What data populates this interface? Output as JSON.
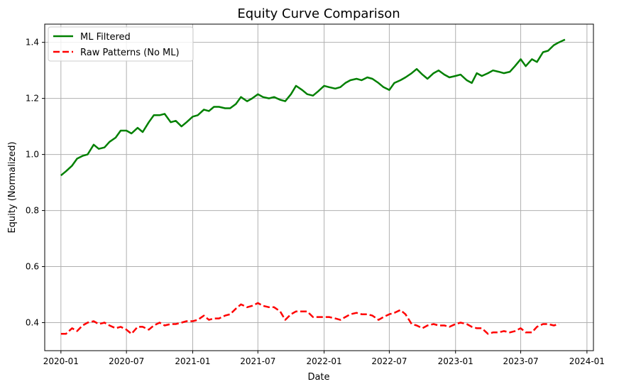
{
  "chart_data": {
    "type": "line",
    "title": "Equity Curve Comparison",
    "xlabel": "Date",
    "ylabel": "Equity (Normalized)",
    "xlim": [
      "2019-11-17",
      "2024-01-19"
    ],
    "ylim": [
      0.3,
      1.465
    ],
    "x_ticks": [
      "2020-01",
      "2020-07",
      "2021-01",
      "2021-07",
      "2022-01",
      "2022-07",
      "2023-01",
      "2023-07",
      "2024-01"
    ],
    "x_tick_dates": [
      "2020-01-01",
      "2020-07-01",
      "2021-01-01",
      "2021-07-01",
      "2022-01-01",
      "2022-07-01",
      "2023-01-01",
      "2023-07-01",
      "2024-01-01"
    ],
    "y_ticks": [
      "0.4",
      "0.6",
      "0.8",
      "1.0",
      "1.2",
      "1.4"
    ],
    "y_tick_values": [
      0.4,
      0.6,
      0.8,
      1.0,
      1.2,
      1.4
    ],
    "grid": true,
    "legend_position": "top-left",
    "series": [
      {
        "name": "ML Filtered",
        "color": "#008000",
        "style": "solid",
        "points": [
          [
            "2020-01-01",
            0.925
          ],
          [
            "2020-01-15",
            0.94
          ],
          [
            "2020-02-01",
            0.96
          ],
          [
            "2020-02-15",
            0.985
          ],
          [
            "2020-03-01",
            0.995
          ],
          [
            "2020-03-15",
            1.0
          ],
          [
            "2020-04-01",
            1.035
          ],
          [
            "2020-04-15",
            1.02
          ],
          [
            "2020-05-01",
            1.025
          ],
          [
            "2020-05-15",
            1.045
          ],
          [
            "2020-06-01",
            1.06
          ],
          [
            "2020-06-15",
            1.085
          ],
          [
            "2020-07-01",
            1.085
          ],
          [
            "2020-07-15",
            1.075
          ],
          [
            "2020-08-01",
            1.095
          ],
          [
            "2020-08-15",
            1.08
          ],
          [
            "2020-09-01",
            1.115
          ],
          [
            "2020-09-15",
            1.14
          ],
          [
            "2020-10-01",
            1.14
          ],
          [
            "2020-10-15",
            1.145
          ],
          [
            "2020-11-01",
            1.115
          ],
          [
            "2020-11-15",
            1.12
          ],
          [
            "2020-12-01",
            1.1
          ],
          [
            "2020-12-15",
            1.115
          ],
          [
            "2021-01-01",
            1.135
          ],
          [
            "2021-01-15",
            1.14
          ],
          [
            "2021-02-01",
            1.16
          ],
          [
            "2021-02-15",
            1.155
          ],
          [
            "2021-03-01",
            1.17
          ],
          [
            "2021-03-15",
            1.17
          ],
          [
            "2021-04-01",
            1.165
          ],
          [
            "2021-04-15",
            1.165
          ],
          [
            "2021-05-01",
            1.18
          ],
          [
            "2021-05-15",
            1.205
          ],
          [
            "2021-06-01",
            1.19
          ],
          [
            "2021-06-15",
            1.2
          ],
          [
            "2021-07-01",
            1.215
          ],
          [
            "2021-07-15",
            1.205
          ],
          [
            "2021-08-01",
            1.2
          ],
          [
            "2021-08-15",
            1.205
          ],
          [
            "2021-09-01",
            1.195
          ],
          [
            "2021-09-15",
            1.19
          ],
          [
            "2021-10-01",
            1.215
          ],
          [
            "2021-10-15",
            1.245
          ],
          [
            "2021-11-01",
            1.23
          ],
          [
            "2021-11-15",
            1.215
          ],
          [
            "2021-12-01",
            1.21
          ],
          [
            "2021-12-15",
            1.225
          ],
          [
            "2022-01-01",
            1.245
          ],
          [
            "2022-01-15",
            1.24
          ],
          [
            "2022-02-01",
            1.235
          ],
          [
            "2022-02-15",
            1.24
          ],
          [
            "2022-03-01",
            1.255
          ],
          [
            "2022-03-15",
            1.265
          ],
          [
            "2022-04-01",
            1.27
          ],
          [
            "2022-04-15",
            1.265
          ],
          [
            "2022-05-01",
            1.275
          ],
          [
            "2022-05-15",
            1.27
          ],
          [
            "2022-06-01",
            1.255
          ],
          [
            "2022-06-15",
            1.24
          ],
          [
            "2022-07-01",
            1.23
          ],
          [
            "2022-07-15",
            1.255
          ],
          [
            "2022-08-01",
            1.265
          ],
          [
            "2022-08-15",
            1.275
          ],
          [
            "2022-09-01",
            1.29
          ],
          [
            "2022-09-15",
            1.305
          ],
          [
            "2022-10-01",
            1.285
          ],
          [
            "2022-10-15",
            1.27
          ],
          [
            "2022-11-01",
            1.29
          ],
          [
            "2022-11-15",
            1.3
          ],
          [
            "2022-12-01",
            1.285
          ],
          [
            "2022-12-15",
            1.275
          ],
          [
            "2023-01-01",
            1.28
          ],
          [
            "2023-01-15",
            1.285
          ],
          [
            "2023-02-01",
            1.265
          ],
          [
            "2023-02-15",
            1.255
          ],
          [
            "2023-03-01",
            1.29
          ],
          [
            "2023-03-15",
            1.28
          ],
          [
            "2023-04-01",
            1.29
          ],
          [
            "2023-04-15",
            1.3
          ],
          [
            "2023-05-01",
            1.295
          ],
          [
            "2023-05-15",
            1.29
          ],
          [
            "2023-06-01",
            1.295
          ],
          [
            "2023-06-15",
            1.315
          ],
          [
            "2023-07-01",
            1.34
          ],
          [
            "2023-07-15",
            1.315
          ],
          [
            "2023-08-01",
            1.34
          ],
          [
            "2023-08-15",
            1.33
          ],
          [
            "2023-09-01",
            1.365
          ],
          [
            "2023-09-15",
            1.37
          ],
          [
            "2023-10-01",
            1.39
          ],
          [
            "2023-10-15",
            1.4
          ],
          [
            "2023-11-01",
            1.41
          ]
        ]
      },
      {
        "name": "Raw Patterns (No ML)",
        "color": "#ff0000",
        "style": "dashed",
        "points": [
          [
            "2020-01-01",
            0.36
          ],
          [
            "2020-01-15",
            0.36
          ],
          [
            "2020-02-01",
            0.38
          ],
          [
            "2020-02-15",
            0.37
          ],
          [
            "2020-03-01",
            0.39
          ],
          [
            "2020-03-15",
            0.4
          ],
          [
            "2020-04-01",
            0.405
          ],
          [
            "2020-04-15",
            0.395
          ],
          [
            "2020-05-01",
            0.4
          ],
          [
            "2020-05-15",
            0.39
          ],
          [
            "2020-06-01",
            0.38
          ],
          [
            "2020-06-15",
            0.385
          ],
          [
            "2020-07-01",
            0.375
          ],
          [
            "2020-07-15",
            0.36
          ],
          [
            "2020-08-01",
            0.385
          ],
          [
            "2020-08-15",
            0.385
          ],
          [
            "2020-09-01",
            0.375
          ],
          [
            "2020-09-15",
            0.39
          ],
          [
            "2020-10-01",
            0.4
          ],
          [
            "2020-10-15",
            0.39
          ],
          [
            "2020-11-01",
            0.395
          ],
          [
            "2020-11-15",
            0.395
          ],
          [
            "2020-12-01",
            0.4
          ],
          [
            "2020-12-15",
            0.405
          ],
          [
            "2021-01-01",
            0.405
          ],
          [
            "2021-01-15",
            0.41
          ],
          [
            "2021-02-01",
            0.425
          ],
          [
            "2021-02-15",
            0.41
          ],
          [
            "2021-03-01",
            0.415
          ],
          [
            "2021-03-15",
            0.415
          ],
          [
            "2021-04-01",
            0.425
          ],
          [
            "2021-04-15",
            0.43
          ],
          [
            "2021-05-01",
            0.45
          ],
          [
            "2021-05-15",
            0.465
          ],
          [
            "2021-06-01",
            0.455
          ],
          [
            "2021-06-15",
            0.46
          ],
          [
            "2021-07-01",
            0.47
          ],
          [
            "2021-07-15",
            0.46
          ],
          [
            "2021-08-01",
            0.455
          ],
          [
            "2021-08-15",
            0.455
          ],
          [
            "2021-09-01",
            0.44
          ],
          [
            "2021-09-15",
            0.41
          ],
          [
            "2021-10-01",
            0.43
          ],
          [
            "2021-10-15",
            0.44
          ],
          [
            "2021-11-01",
            0.44
          ],
          [
            "2021-11-15",
            0.44
          ],
          [
            "2021-12-01",
            0.42
          ],
          [
            "2021-12-15",
            0.42
          ],
          [
            "2022-01-01",
            0.42
          ],
          [
            "2022-01-15",
            0.42
          ],
          [
            "2022-02-01",
            0.415
          ],
          [
            "2022-02-15",
            0.41
          ],
          [
            "2022-03-01",
            0.42
          ],
          [
            "2022-03-15",
            0.43
          ],
          [
            "2022-04-01",
            0.435
          ],
          [
            "2022-04-15",
            0.43
          ],
          [
            "2022-05-01",
            0.43
          ],
          [
            "2022-05-15",
            0.425
          ],
          [
            "2022-06-01",
            0.41
          ],
          [
            "2022-06-15",
            0.42
          ],
          [
            "2022-07-01",
            0.43
          ],
          [
            "2022-07-15",
            0.435
          ],
          [
            "2022-08-01",
            0.445
          ],
          [
            "2022-08-15",
            0.43
          ],
          [
            "2022-09-01",
            0.395
          ],
          [
            "2022-09-15",
            0.39
          ],
          [
            "2022-10-01",
            0.38
          ],
          [
            "2022-10-15",
            0.39
          ],
          [
            "2022-11-01",
            0.395
          ],
          [
            "2022-11-15",
            0.39
          ],
          [
            "2022-12-01",
            0.39
          ],
          [
            "2022-12-15",
            0.385
          ],
          [
            "2023-01-01",
            0.395
          ],
          [
            "2023-01-15",
            0.4
          ],
          [
            "2023-02-01",
            0.395
          ],
          [
            "2023-02-15",
            0.385
          ],
          [
            "2023-03-01",
            0.38
          ],
          [
            "2023-03-15",
            0.38
          ],
          [
            "2023-04-01",
            0.36
          ],
          [
            "2023-04-15",
            0.365
          ],
          [
            "2023-05-01",
            0.365
          ],
          [
            "2023-05-15",
            0.37
          ],
          [
            "2023-06-01",
            0.365
          ],
          [
            "2023-06-15",
            0.37
          ],
          [
            "2023-07-01",
            0.38
          ],
          [
            "2023-07-15",
            0.365
          ],
          [
            "2023-08-01",
            0.365
          ],
          [
            "2023-08-15",
            0.385
          ],
          [
            "2023-09-01",
            0.395
          ],
          [
            "2023-09-15",
            0.395
          ],
          [
            "2023-10-01",
            0.39
          ],
          [
            "2023-10-15",
            0.395
          ]
        ]
      }
    ]
  }
}
